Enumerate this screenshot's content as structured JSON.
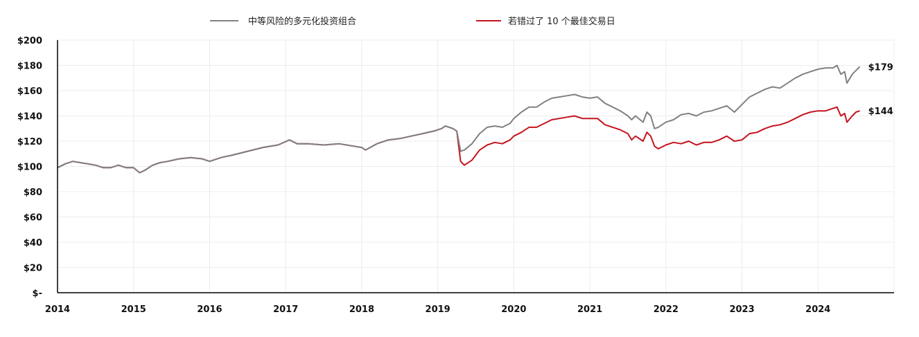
{
  "chart_data": {
    "type": "line",
    "xlabel": "",
    "ylabel": "",
    "xlim": [
      2014,
      2025
    ],
    "ylim": [
      0,
      200
    ],
    "yticks": [
      0,
      20,
      40,
      60,
      80,
      100,
      120,
      140,
      160,
      180,
      200
    ],
    "ytick_labels": [
      "$-",
      "$20",
      "$40",
      "$60",
      "$80",
      "$100",
      "$120",
      "$140",
      "$160",
      "$180",
      "$200"
    ],
    "xticks": [
      2014,
      2015,
      2016,
      2017,
      2018,
      2019,
      2020,
      2021,
      2022,
      2023,
      2024
    ],
    "xtick_labels": [
      "2014",
      "2015",
      "2016",
      "2017",
      "2018",
      "2019",
      "2020",
      "2021",
      "2022",
      "2023",
      "2024"
    ],
    "grid": true,
    "legend": "top-center",
    "series": [
      {
        "name": "中等风险的多元化投资组合",
        "color": "#808080",
        "end_label": "$179",
        "x": [
          2014.0,
          2014.1,
          2014.2,
          2014.3,
          2014.4,
          2014.5,
          2014.6,
          2014.7,
          2014.8,
          2014.9,
          2015.0,
          2015.08,
          2015.15,
          2015.25,
          2015.35,
          2015.45,
          2015.6,
          2015.75,
          2015.9,
          2016.0,
          2016.15,
          2016.3,
          2016.5,
          2016.7,
          2016.9,
          2017.05,
          2017.15,
          2017.3,
          2017.5,
          2017.7,
          2017.9,
          2018.0,
          2018.05,
          2018.2,
          2018.35,
          2018.5,
          2018.65,
          2018.8,
          2018.95,
          2019.05,
          2019.1,
          2019.2,
          2019.25,
          2019.3,
          2019.35,
          2019.45,
          2019.55,
          2019.65,
          2019.75,
          2019.85,
          2019.95,
          2020.0,
          2020.1,
          2020.2,
          2020.3,
          2020.4,
          2020.5,
          2020.6,
          2020.7,
          2020.8,
          2020.9,
          2021.0,
          2021.1,
          2021.2,
          2021.3,
          2021.4,
          2021.5,
          2021.55,
          2021.6,
          2021.7,
          2021.75,
          2021.8,
          2021.85,
          2021.9,
          2022.0,
          2022.1,
          2022.2,
          2022.3,
          2022.4,
          2022.5,
          2022.6,
          2022.7,
          2022.8,
          2022.9,
          2023.0,
          2023.1,
          2023.2,
          2023.3,
          2023.4,
          2023.5,
          2023.6,
          2023.7,
          2023.8,
          2023.9,
          2024.0,
          2024.1,
          2024.2,
          2024.25,
          2024.3,
          2024.35,
          2024.38,
          2024.45,
          2024.5,
          2024.55
        ],
        "values": [
          99,
          102,
          104,
          103,
          102,
          101,
          99,
          99,
          101,
          99,
          99,
          95,
          97,
          101,
          103,
          104,
          106,
          107,
          106,
          104,
          107,
          109,
          112,
          115,
          117,
          121,
          118,
          118,
          117,
          118,
          116,
          115,
          113,
          118,
          121,
          122,
          124,
          126,
          128,
          130,
          132,
          130,
          128,
          112,
          113,
          118,
          126,
          131,
          132,
          131,
          134,
          138,
          143,
          147,
          147,
          151,
          154,
          155,
          156,
          157,
          155,
          154,
          155,
          150,
          147,
          144,
          140,
          137,
          140,
          135,
          143,
          140,
          130,
          131,
          135,
          137,
          141,
          142,
          140,
          143,
          144,
          146,
          148,
          143,
          149,
          155,
          158,
          161,
          163,
          162,
          166,
          170,
          173,
          175,
          177,
          178,
          178,
          180,
          173,
          175,
          166,
          173,
          176,
          179
        ]
      },
      {
        "name": "若错过了 10 个最佳交易日",
        "color": "#c4131e",
        "end_label": "$144",
        "x": [
          2014.0,
          2014.1,
          2014.2,
          2014.3,
          2014.4,
          2014.5,
          2014.6,
          2014.7,
          2014.8,
          2014.9,
          2015.0,
          2015.08,
          2015.15,
          2015.25,
          2015.35,
          2015.45,
          2015.6,
          2015.75,
          2015.9,
          2016.0,
          2016.15,
          2016.3,
          2016.5,
          2016.7,
          2016.9,
          2017.05,
          2017.15,
          2017.3,
          2017.5,
          2017.7,
          2017.9,
          2018.0,
          2018.05,
          2018.2,
          2018.35,
          2018.5,
          2018.65,
          2018.8,
          2018.95,
          2019.05,
          2019.1,
          2019.2,
          2019.25,
          2019.3,
          2019.35,
          2019.45,
          2019.55,
          2019.65,
          2019.75,
          2019.85,
          2019.95,
          2020.0,
          2020.1,
          2020.2,
          2020.3,
          2020.4,
          2020.5,
          2020.6,
          2020.7,
          2020.8,
          2020.9,
          2021.0,
          2021.1,
          2021.2,
          2021.3,
          2021.4,
          2021.5,
          2021.55,
          2021.6,
          2021.7,
          2021.75,
          2021.8,
          2021.85,
          2021.9,
          2022.0,
          2022.1,
          2022.2,
          2022.3,
          2022.4,
          2022.5,
          2022.6,
          2022.7,
          2022.8,
          2022.9,
          2023.0,
          2023.1,
          2023.2,
          2023.3,
          2023.4,
          2023.5,
          2023.6,
          2023.7,
          2023.8,
          2023.9,
          2024.0,
          2024.1,
          2024.2,
          2024.25,
          2024.3,
          2024.35,
          2024.38,
          2024.45,
          2024.5,
          2024.55
        ],
        "values": [
          99,
          102,
          104,
          103,
          102,
          101,
          99,
          99,
          101,
          99,
          99,
          95,
          97,
          101,
          103,
          104,
          106,
          107,
          106,
          104,
          107,
          109,
          112,
          115,
          117,
          121,
          118,
          118,
          117,
          118,
          116,
          115,
          113,
          118,
          121,
          122,
          124,
          126,
          128,
          130,
          132,
          130,
          128,
          104,
          101,
          105,
          113,
          117,
          119,
          118,
          121,
          124,
          127,
          131,
          131,
          134,
          137,
          138,
          139,
          140,
          138,
          138,
          138,
          133,
          131,
          129,
          126,
          121,
          124,
          120,
          127,
          124,
          116,
          114,
          117,
          119,
          118,
          120,
          117,
          119,
          119,
          121,
          124,
          120,
          121,
          126,
          127,
          130,
          132,
          133,
          135,
          138,
          141,
          143,
          144,
          144,
          146,
          147,
          140,
          142,
          135,
          140,
          143,
          144
        ]
      }
    ]
  }
}
